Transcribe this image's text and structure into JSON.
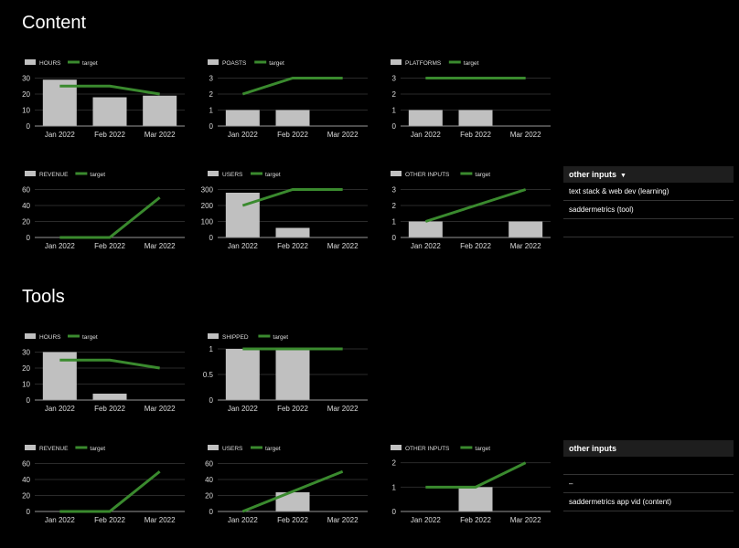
{
  "sections": {
    "content": {
      "title": "Content"
    },
    "tools": {
      "title": "Tools"
    }
  },
  "colors": {
    "bar": "#c0c0c0",
    "target": "#3a8a2e",
    "grid": "#2a2a2a",
    "axis": "#999999"
  },
  "chart_data": [
    {
      "id": "c-hours",
      "type": "bar",
      "categories": [
        "Jan 2022",
        "Feb 2022",
        "Mar 2022"
      ],
      "series": [
        {
          "name": "HOURS",
          "values": [
            29,
            18,
            19
          ]
        },
        {
          "name": "target",
          "values": [
            25,
            25,
            20
          ]
        }
      ],
      "yticks": [
        0,
        10,
        20,
        30
      ],
      "ylim": [
        0,
        32
      ]
    },
    {
      "id": "c-poasts",
      "type": "bar",
      "categories": [
        "Jan 2022",
        "Feb 2022",
        "Mar 2022"
      ],
      "series": [
        {
          "name": "POASTS",
          "values": [
            1,
            1,
            0
          ]
        },
        {
          "name": "target",
          "values": [
            2,
            3,
            3
          ]
        }
      ],
      "yticks": [
        0,
        1,
        2,
        3
      ],
      "ylim": [
        0,
        3.2
      ]
    },
    {
      "id": "c-platforms",
      "type": "bar",
      "categories": [
        "Jan 2022",
        "Feb 2022",
        "Mar 2022"
      ],
      "series": [
        {
          "name": "PLATFORMS",
          "values": [
            1,
            1,
            0
          ]
        },
        {
          "name": "target",
          "values": [
            3,
            3,
            3
          ]
        }
      ],
      "yticks": [
        0,
        1,
        2,
        3
      ],
      "ylim": [
        0,
        3.2
      ]
    },
    {
      "id": "c-revenue",
      "type": "bar",
      "categories": [
        "Jan 2022",
        "Feb 2022",
        "Mar 2022"
      ],
      "series": [
        {
          "name": "REVENUE",
          "values": [
            0,
            0,
            0
          ]
        },
        {
          "name": "target",
          "values": [
            0,
            0,
            50
          ]
        }
      ],
      "yticks": [
        0,
        20,
        40,
        60
      ],
      "ylim": [
        0,
        64
      ]
    },
    {
      "id": "c-users",
      "type": "bar",
      "categories": [
        "Jan 2022",
        "Feb 2022",
        "Mar 2022"
      ],
      "series": [
        {
          "name": "USERS",
          "values": [
            280,
            60,
            0
          ]
        },
        {
          "name": "target",
          "values": [
            200,
            300,
            300
          ]
        }
      ],
      "yticks": [
        0,
        100,
        200,
        300
      ],
      "ylim": [
        0,
        320
      ]
    },
    {
      "id": "c-other",
      "type": "bar",
      "categories": [
        "Jan 2022",
        "Feb 2022",
        "Mar 2022"
      ],
      "series": [
        {
          "name": "OTHER INPUTS",
          "values": [
            1,
            0,
            1
          ]
        },
        {
          "name": "target",
          "values": [
            1,
            2,
            3
          ]
        }
      ],
      "yticks": [
        0,
        1,
        2,
        3
      ],
      "ylim": [
        0,
        3.2
      ]
    },
    {
      "id": "t-hours",
      "type": "bar",
      "categories": [
        "Jan 2022",
        "Feb 2022",
        "Mar 2022"
      ],
      "series": [
        {
          "name": "HOURS",
          "values": [
            30,
            4,
            0
          ]
        },
        {
          "name": "target",
          "values": [
            25,
            25,
            20
          ]
        }
      ],
      "yticks": [
        0,
        10,
        20,
        30
      ],
      "ylim": [
        0,
        32
      ]
    },
    {
      "id": "t-shipped",
      "type": "bar",
      "categories": [
        "Jan 2022",
        "Feb 2022",
        "Mar 2022"
      ],
      "series": [
        {
          "name": "SHIPPED",
          "values": [
            1,
            1,
            0
          ]
        },
        {
          "name": "target",
          "values": [
            1,
            1,
            1
          ]
        }
      ],
      "yticks": [
        0,
        0.5,
        1
      ],
      "ylim": [
        0,
        1
      ]
    },
    {
      "id": "t-revenue",
      "type": "bar",
      "categories": [
        "Jan 2022",
        "Feb 2022",
        "Mar 2022"
      ],
      "series": [
        {
          "name": "REVENUE",
          "values": [
            0,
            0,
            0
          ]
        },
        {
          "name": "target",
          "values": [
            0,
            0,
            50
          ]
        }
      ],
      "yticks": [
        0,
        20,
        40,
        60
      ],
      "ylim": [
        0,
        64
      ]
    },
    {
      "id": "t-users",
      "type": "bar",
      "categories": [
        "Jan 2022",
        "Feb 2022",
        "Mar 2022"
      ],
      "series": [
        {
          "name": "USERS",
          "values": [
            0,
            24,
            0
          ]
        },
        {
          "name": "target",
          "values": [
            0,
            25,
            50
          ]
        }
      ],
      "yticks": [
        0,
        20,
        40,
        60
      ],
      "ylim": [
        0,
        64
      ]
    },
    {
      "id": "t-other",
      "type": "bar",
      "categories": [
        "Jan 2022",
        "Feb 2022",
        "Mar 2022"
      ],
      "series": [
        {
          "name": "OTHER INPUTS",
          "values": [
            0,
            1,
            0
          ]
        },
        {
          "name": "target",
          "values": [
            1,
            1,
            2
          ]
        }
      ],
      "yticks": [
        0,
        1,
        2
      ],
      "ylim": [
        0,
        2.1
      ]
    }
  ],
  "panels": {
    "content": {
      "title": "other inputs",
      "caret": "▼",
      "rows": [
        "text stack & web dev (learning)",
        "saddermetrics (tool)",
        ""
      ]
    },
    "tools": {
      "title": "other inputs",
      "rows": [
        "",
        "–",
        "saddermetrics app vid (content)"
      ]
    }
  }
}
